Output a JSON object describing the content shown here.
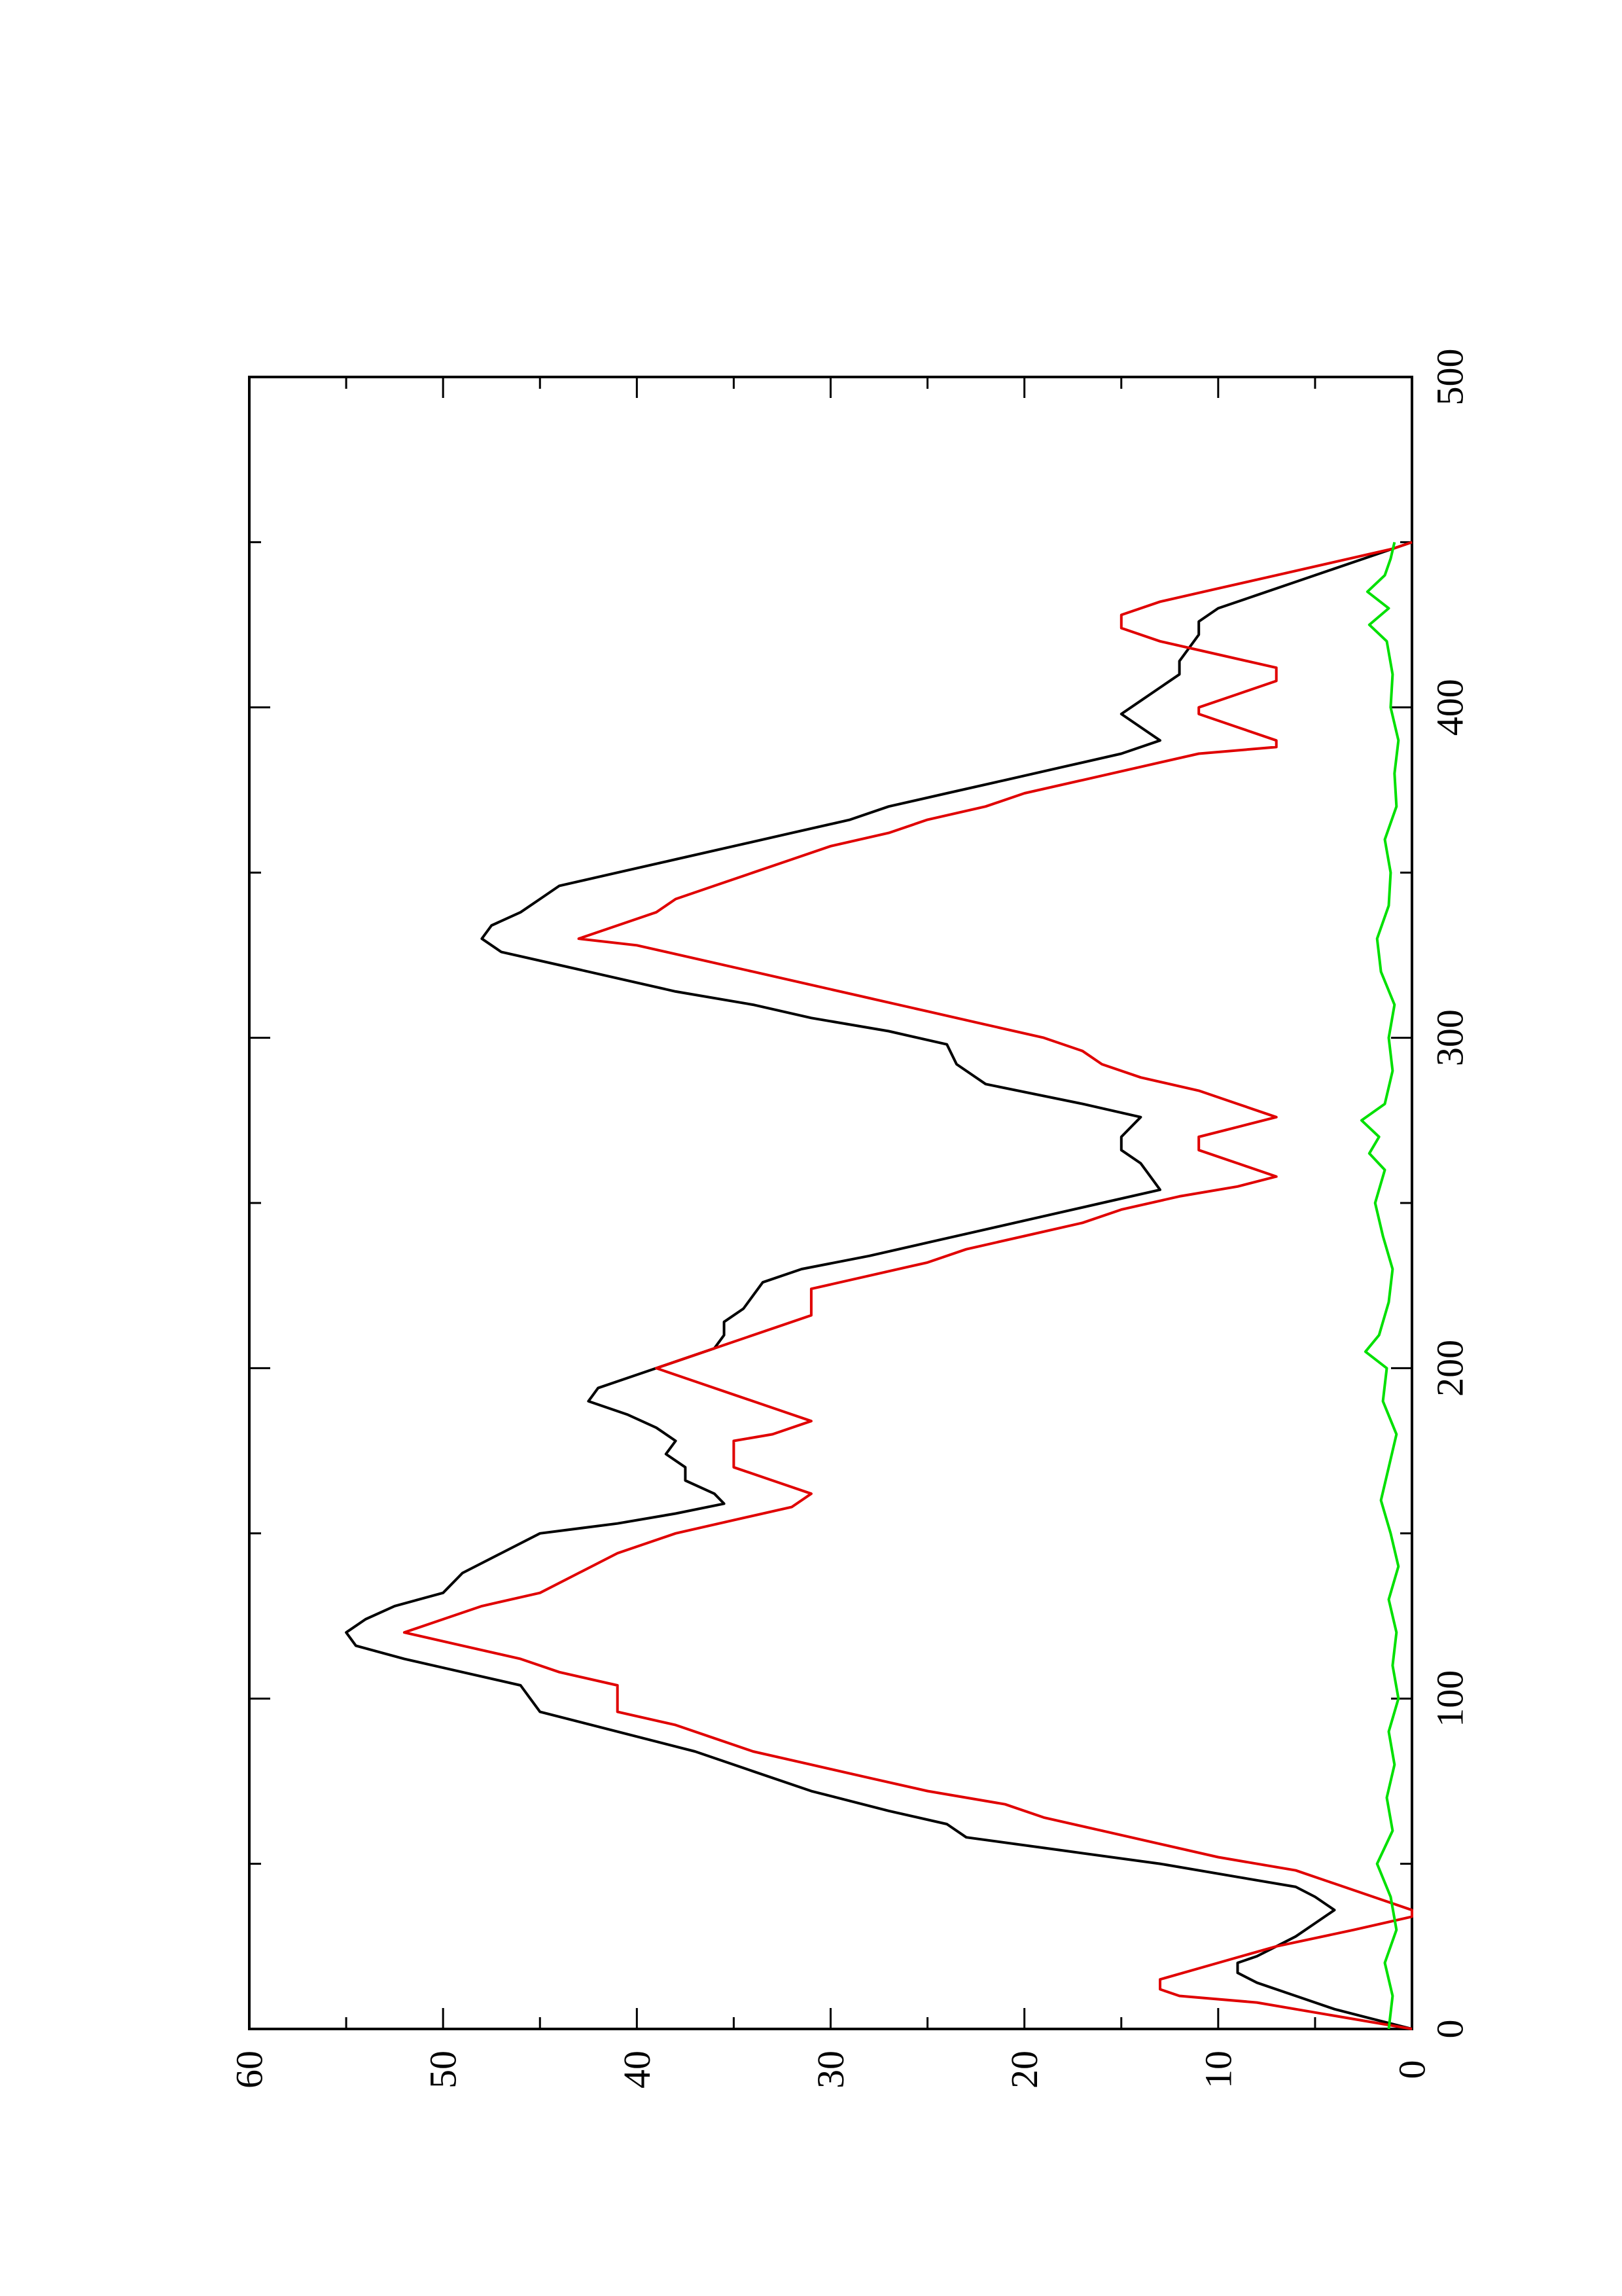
{
  "chart_data": {
    "type": "line",
    "title": "",
    "xlabel": "",
    "ylabel": "",
    "xlim": [
      0,
      500
    ],
    "ylim": [
      0,
      60
    ],
    "x_ticks": [
      0,
      100,
      200,
      300,
      400,
      500
    ],
    "x_minor_ticks": [
      50,
      150,
      250,
      350,
      450
    ],
    "y_ticks": [
      0,
      10,
      20,
      30,
      40,
      50,
      60
    ],
    "y_minor_ticks": [
      5,
      15,
      25,
      35,
      45,
      55
    ],
    "grid": false,
    "legend": "none",
    "orientation": "rotated-90-ccw",
    "series": [
      {
        "color": "#000000",
        "points": [
          [
            0,
            0
          ],
          [
            3,
            2
          ],
          [
            6,
            4
          ],
          [
            10,
            6
          ],
          [
            14,
            8
          ],
          [
            17,
            9
          ],
          [
            20,
            9
          ],
          [
            22,
            8
          ],
          [
            25,
            7
          ],
          [
            28,
            6
          ],
          [
            32,
            5
          ],
          [
            36,
            4
          ],
          [
            40,
            5
          ],
          [
            43,
            6
          ],
          [
            46,
            9
          ],
          [
            50,
            13
          ],
          [
            54,
            18
          ],
          [
            58,
            23
          ],
          [
            62,
            24
          ],
          [
            66,
            27
          ],
          [
            72,
            31
          ],
          [
            78,
            34
          ],
          [
            84,
            37
          ],
          [
            90,
            41
          ],
          [
            96,
            45
          ],
          [
            100,
            45.5
          ],
          [
            104,
            46
          ],
          [
            108,
            49
          ],
          [
            112,
            52
          ],
          [
            116,
            54.5
          ],
          [
            120,
            55
          ],
          [
            124,
            54
          ],
          [
            128,
            52.5
          ],
          [
            132,
            50
          ],
          [
            138,
            49
          ],
          [
            144,
            47
          ],
          [
            150,
            45
          ],
          [
            153,
            41
          ],
          [
            156,
            38
          ],
          [
            159,
            35.5
          ],
          [
            162,
            36
          ],
          [
            166,
            37.5
          ],
          [
            170,
            37.5
          ],
          [
            174,
            38.5
          ],
          [
            178,
            38
          ],
          [
            182,
            39
          ],
          [
            186,
            40.5
          ],
          [
            190,
            42.5
          ],
          [
            194,
            42
          ],
          [
            198,
            40
          ],
          [
            202,
            38
          ],
          [
            206,
            36
          ],
          [
            210,
            35.5
          ],
          [
            214,
            35.5
          ],
          [
            218,
            34.5
          ],
          [
            222,
            34
          ],
          [
            226,
            33.5
          ],
          [
            230,
            31.5
          ],
          [
            234,
            28
          ],
          [
            238,
            25
          ],
          [
            242,
            22
          ],
          [
            246,
            19
          ],
          [
            250,
            16
          ],
          [
            254,
            13
          ],
          [
            258,
            13.5
          ],
          [
            262,
            14
          ],
          [
            266,
            15
          ],
          [
            270,
            15
          ],
          [
            273,
            14.5
          ],
          [
            276,
            14
          ],
          [
            280,
            17
          ],
          [
            286,
            22
          ],
          [
            292,
            23.5
          ],
          [
            298,
            24
          ],
          [
            302,
            27
          ],
          [
            306,
            31
          ],
          [
            310,
            34
          ],
          [
            314,
            38
          ],
          [
            318,
            41
          ],
          [
            322,
            44
          ],
          [
            326,
            47
          ],
          [
            330,
            48
          ],
          [
            334,
            47.5
          ],
          [
            338,
            46
          ],
          [
            342,
            45
          ],
          [
            346,
            44
          ],
          [
            350,
            41
          ],
          [
            354,
            38
          ],
          [
            358,
            35
          ],
          [
            362,
            32
          ],
          [
            366,
            29
          ],
          [
            370,
            27
          ],
          [
            374,
            24
          ],
          [
            378,
            21
          ],
          [
            382,
            18
          ],
          [
            386,
            15
          ],
          [
            390,
            13
          ],
          [
            394,
            14
          ],
          [
            398,
            15
          ],
          [
            402,
            14
          ],
          [
            406,
            13
          ],
          [
            410,
            12
          ],
          [
            414,
            12
          ],
          [
            418,
            11.5
          ],
          [
            422,
            11
          ],
          [
            426,
            11
          ],
          [
            430,
            10
          ],
          [
            434,
            8
          ],
          [
            438,
            6
          ],
          [
            442,
            4
          ],
          [
            446,
            2
          ],
          [
            450,
            0
          ]
        ]
      },
      {
        "color": "#e00000",
        "points": [
          [
            0,
            0
          ],
          [
            5,
            5
          ],
          [
            8,
            8
          ],
          [
            10,
            12
          ],
          [
            12,
            13
          ],
          [
            15,
            13
          ],
          [
            20,
            10
          ],
          [
            25,
            7
          ],
          [
            30,
            3
          ],
          [
            34,
            0
          ],
          [
            36,
            0
          ],
          [
            40,
            2
          ],
          [
            44,
            4
          ],
          [
            48,
            6
          ],
          [
            52,
            10
          ],
          [
            56,
            13
          ],
          [
            60,
            16
          ],
          [
            64,
            19
          ],
          [
            68,
            21
          ],
          [
            72,
            25
          ],
          [
            76,
            28
          ],
          [
            80,
            31
          ],
          [
            84,
            34
          ],
          [
            88,
            36
          ],
          [
            92,
            38
          ],
          [
            96,
            41
          ],
          [
            100,
            41
          ],
          [
            104,
            41
          ],
          [
            108,
            44
          ],
          [
            112,
            46
          ],
          [
            116,
            49
          ],
          [
            120,
            52
          ],
          [
            124,
            50
          ],
          [
            128,
            48
          ],
          [
            132,
            45
          ],
          [
            138,
            43
          ],
          [
            144,
            41
          ],
          [
            150,
            38
          ],
          [
            154,
            35
          ],
          [
            158,
            32
          ],
          [
            162,
            31
          ],
          [
            166,
            33
          ],
          [
            170,
            35
          ],
          [
            174,
            35
          ],
          [
            178,
            35
          ],
          [
            180,
            33
          ],
          [
            184,
            31
          ],
          [
            188,
            33
          ],
          [
            192,
            35
          ],
          [
            196,
            37
          ],
          [
            200,
            39
          ],
          [
            204,
            37
          ],
          [
            208,
            35
          ],
          [
            212,
            33
          ],
          [
            216,
            31
          ],
          [
            220,
            31
          ],
          [
            224,
            31
          ],
          [
            228,
            28
          ],
          [
            232,
            25
          ],
          [
            236,
            23
          ],
          [
            240,
            20
          ],
          [
            244,
            17
          ],
          [
            248,
            15
          ],
          [
            252,
            12
          ],
          [
            255,
            9
          ],
          [
            258,
            7
          ],
          [
            262,
            9
          ],
          [
            266,
            11
          ],
          [
            270,
            11
          ],
          [
            273,
            9
          ],
          [
            276,
            7
          ],
          [
            280,
            9
          ],
          [
            284,
            11
          ],
          [
            288,
            14
          ],
          [
            292,
            16
          ],
          [
            296,
            17
          ],
          [
            300,
            19
          ],
          [
            304,
            22
          ],
          [
            308,
            25
          ],
          [
            312,
            28
          ],
          [
            316,
            31
          ],
          [
            320,
            34
          ],
          [
            324,
            37
          ],
          [
            328,
            40
          ],
          [
            330,
            43
          ],
          [
            334,
            41
          ],
          [
            338,
            39
          ],
          [
            342,
            38
          ],
          [
            346,
            36
          ],
          [
            350,
            34
          ],
          [
            354,
            32
          ],
          [
            358,
            30
          ],
          [
            362,
            27
          ],
          [
            366,
            25
          ],
          [
            370,
            22
          ],
          [
            374,
            20
          ],
          [
            378,
            17
          ],
          [
            382,
            14
          ],
          [
            386,
            11
          ],
          [
            388,
            7
          ],
          [
            390,
            7
          ],
          [
            394,
            9
          ],
          [
            398,
            11
          ],
          [
            400,
            11
          ],
          [
            404,
            9
          ],
          [
            408,
            7
          ],
          [
            412,
            7
          ],
          [
            416,
            10
          ],
          [
            420,
            13
          ],
          [
            424,
            15
          ],
          [
            428,
            15
          ],
          [
            432,
            13
          ],
          [
            436,
            10
          ],
          [
            440,
            7
          ],
          [
            444,
            4
          ],
          [
            448,
            1
          ],
          [
            450,
            0
          ]
        ]
      },
      {
        "color": "#00e000",
        "points": [
          [
            0,
            1.2
          ],
          [
            10,
            1.0
          ],
          [
            20,
            1.4
          ],
          [
            30,
            0.8
          ],
          [
            40,
            1.1
          ],
          [
            50,
            1.8
          ],
          [
            60,
            1.0
          ],
          [
            70,
            1.3
          ],
          [
            80,
            0.9
          ],
          [
            90,
            1.2
          ],
          [
            100,
            0.7
          ],
          [
            110,
            1.0
          ],
          [
            120,
            0.8
          ],
          [
            130,
            1.2
          ],
          [
            140,
            0.7
          ],
          [
            150,
            1.1
          ],
          [
            160,
            1.6
          ],
          [
            170,
            1.2
          ],
          [
            180,
            0.8
          ],
          [
            190,
            1.5
          ],
          [
            200,
            1.3
          ],
          [
            205,
            2.4
          ],
          [
            210,
            1.7
          ],
          [
            220,
            1.2
          ],
          [
            230,
            1.0
          ],
          [
            240,
            1.5
          ],
          [
            250,
            1.9
          ],
          [
            260,
            1.4
          ],
          [
            265,
            2.2
          ],
          [
            270,
            1.7
          ],
          [
            275,
            2.6
          ],
          [
            280,
            1.4
          ],
          [
            290,
            1.0
          ],
          [
            300,
            1.2
          ],
          [
            310,
            0.9
          ],
          [
            320,
            1.6
          ],
          [
            330,
            1.8
          ],
          [
            340,
            1.2
          ],
          [
            350,
            1.1
          ],
          [
            360,
            1.4
          ],
          [
            370,
            0.8
          ],
          [
            380,
            0.9
          ],
          [
            390,
            0.7
          ],
          [
            400,
            1.1
          ],
          [
            410,
            1.0
          ],
          [
            420,
            1.3
          ],
          [
            425,
            2.2
          ],
          [
            430,
            1.2
          ],
          [
            435,
            2.3
          ],
          [
            440,
            1.4
          ],
          [
            445,
            1.1
          ],
          [
            450,
            0.9
          ]
        ]
      }
    ]
  }
}
